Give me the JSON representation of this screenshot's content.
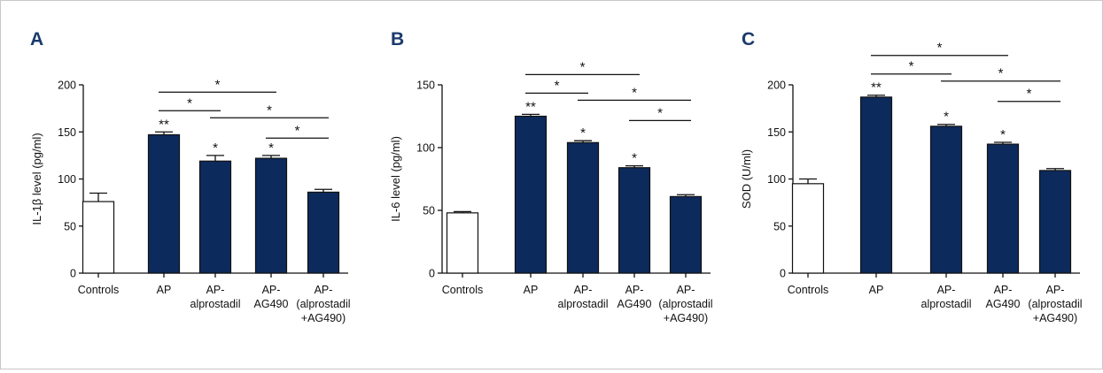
{
  "colors": {
    "filled": "#0d2a5c",
    "control_fill": "#ffffff",
    "ink": "#111111",
    "panel_letter": "#1a3a6b"
  },
  "chart_data": [
    {
      "type": "bar",
      "panel": "A",
      "ylabel": "IL-1β level (pg/ml)",
      "ylim": [
        0,
        200
      ],
      "yticks": [
        0,
        50,
        100,
        150,
        200
      ],
      "categories": [
        [
          "Controls"
        ],
        [
          "AP"
        ],
        [
          "AP-",
          "alprostadil"
        ],
        [
          "AP-",
          "AG490"
        ],
        [
          "AP-",
          "(alprostadil",
          "+AG490)"
        ]
      ],
      "values": [
        76,
        147,
        119,
        122,
        86
      ],
      "errors": [
        9,
        3,
        6,
        3,
        3
      ],
      "filled": [
        false,
        true,
        true,
        true,
        true
      ],
      "bar_stars": [
        "",
        "**",
        "*",
        "*",
        ""
      ],
      "brackets": [
        {
          "from": 1,
          "to": 3,
          "label": "*"
        },
        {
          "from": 1,
          "to": 2,
          "label": "*"
        },
        {
          "from": 2,
          "to": 4,
          "label": "*"
        },
        {
          "from": 3,
          "to": 4,
          "label": "*"
        }
      ]
    },
    {
      "type": "bar",
      "panel": "B",
      "ylabel": "IL-6 level (pg/ml)",
      "ylim": [
        0,
        150
      ],
      "yticks": [
        0,
        50,
        100,
        150
      ],
      "categories": [
        [
          "Controls"
        ],
        [
          "AP"
        ],
        [
          "AP-",
          "alprostadil"
        ],
        [
          "AP-",
          "AG490"
        ],
        [
          "AP-",
          "(alprostadil",
          "+AG490)"
        ]
      ],
      "values": [
        48,
        125,
        104,
        84,
        61
      ],
      "errors": [
        1,
        1.5,
        1.5,
        1.5,
        1.5
      ],
      "filled": [
        false,
        true,
        true,
        true,
        true
      ],
      "bar_stars": [
        "",
        "**",
        "*",
        "*",
        ""
      ],
      "brackets": [
        {
          "from": 1,
          "to": 3,
          "label": "*"
        },
        {
          "from": 1,
          "to": 2,
          "label": "*"
        },
        {
          "from": 2,
          "to": 4,
          "label": "*"
        },
        {
          "from": 3,
          "to": 4,
          "label": "*"
        }
      ]
    },
    {
      "type": "bar",
      "panel": "C",
      "ylabel": "SOD (U/ml)",
      "ylim": [
        0,
        200
      ],
      "yticks": [
        0,
        50,
        100,
        150,
        200
      ],
      "categories": [
        [
          "Controls"
        ],
        [
          "AP"
        ],
        [
          "AP-",
          "alprostadil"
        ],
        [
          "AP-",
          "AG490"
        ],
        [
          "AP-",
          "(alprostadil",
          "+AG490)"
        ]
      ],
      "values": [
        95,
        187,
        156,
        137,
        109
      ],
      "errors": [
        5,
        2,
        2,
        2,
        2
      ],
      "filled": [
        false,
        true,
        true,
        true,
        true
      ],
      "bar_stars": [
        "",
        "**",
        "*",
        "*",
        ""
      ],
      "brackets": [
        {
          "from": 1,
          "to": 3,
          "label": "*"
        },
        {
          "from": 1,
          "to": 2,
          "label": "*"
        },
        {
          "from": 2,
          "to": 4,
          "label": "*"
        },
        {
          "from": 3,
          "to": 4,
          "label": "*"
        }
      ]
    }
  ]
}
